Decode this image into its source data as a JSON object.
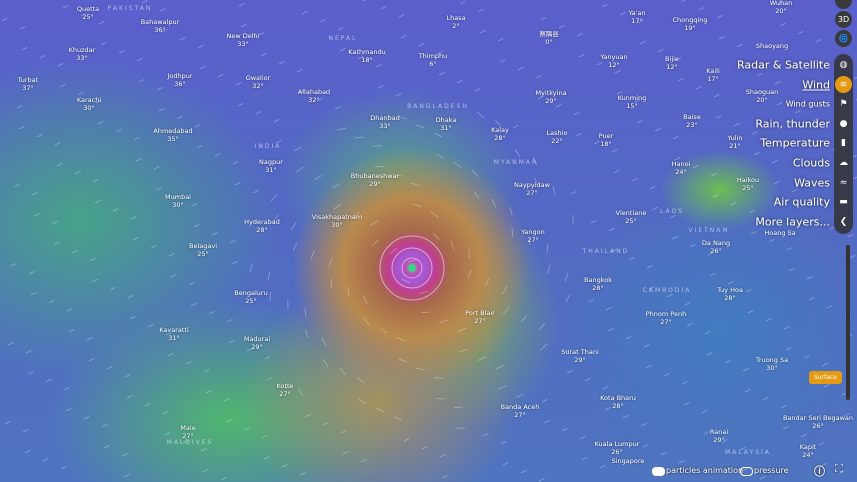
{
  "map": {
    "colors": {
      "active_layer": "#e59a11",
      "menu_bg": "#333333"
    },
    "countries": [
      "PAKISTAN",
      "INDIA",
      "NEPAL",
      "BANGLADESH",
      "MYANMAR",
      "LAOS",
      "VIETNAM",
      "THAILAND",
      "CAMBODIA",
      "MALDIVES",
      "MALAYSIA"
    ],
    "cities": [
      {
        "name": "Quetta",
        "temp": "25°"
      },
      {
        "name": "Bahawalpur",
        "temp": "36°"
      },
      {
        "name": "New Delhi",
        "temp": "33°"
      },
      {
        "name": "Khuzdar",
        "temp": "33°"
      },
      {
        "name": "Turbat",
        "temp": "37°"
      },
      {
        "name": "Jodhpur",
        "temp": "36°"
      },
      {
        "name": "Gwalior",
        "temp": "32°"
      },
      {
        "name": "Karachi",
        "temp": "30°"
      },
      {
        "name": "Ahmedabad",
        "temp": "35°"
      },
      {
        "name": "Kathmandu",
        "temp": "18°"
      },
      {
        "name": "Thimphu",
        "temp": "6°"
      },
      {
        "name": "Lhasa",
        "temp": "2°"
      },
      {
        "name": "察隅县",
        "temp": "0°"
      },
      {
        "name": "Allahabad",
        "temp": "32°"
      },
      {
        "name": "Dhanbad",
        "temp": "33°"
      },
      {
        "name": "Dhaka",
        "temp": "31°"
      },
      {
        "name": "Kalay",
        "temp": "28°"
      },
      {
        "name": "Lashio",
        "temp": "22°"
      },
      {
        "name": "Myitkyina",
        "temp": "29°"
      },
      {
        "name": "Ya'an",
        "temp": "17°"
      },
      {
        "name": "Chongqing",
        "temp": "19°"
      },
      {
        "name": "Yanyuan",
        "temp": "12°"
      },
      {
        "name": "Bijie",
        "temp": "12°"
      },
      {
        "name": "Kaili",
        "temp": "17°"
      },
      {
        "name": "Kunming",
        "temp": "15°"
      },
      {
        "name": "Baise",
        "temp": "23°"
      },
      {
        "name": "Puer",
        "temp": "18°"
      },
      {
        "name": "Yulin",
        "temp": "21°"
      },
      {
        "name": "Hanoi",
        "temp": "24°"
      },
      {
        "name": "Haikou",
        "temp": "25°"
      },
      {
        "name": "Wuhan",
        "temp": "20°"
      },
      {
        "name": "Nagpur",
        "temp": "31°"
      },
      {
        "name": "Bhubaneshwar",
        "temp": "29°"
      },
      {
        "name": "Naypyidaw",
        "temp": "27°"
      },
      {
        "name": "Mumbai",
        "temp": "30°"
      },
      {
        "name": "Hyderabad",
        "temp": "28°"
      },
      {
        "name": "Visakhapatnam",
        "temp": "30°"
      },
      {
        "name": "Yangon",
        "temp": "27°"
      },
      {
        "name": "Vientiane",
        "temp": "25°"
      },
      {
        "name": "Da Nang",
        "temp": "26°"
      },
      {
        "name": "Belagavi",
        "temp": "25°"
      },
      {
        "name": "Bengaluru",
        "temp": "25°"
      },
      {
        "name": "Bangkok",
        "temp": "28°"
      },
      {
        "name": "Tuy Hoa",
        "temp": "28°"
      },
      {
        "name": "Port Blair",
        "temp": "27°"
      },
      {
        "name": "Phnom Penh",
        "temp": "27°"
      },
      {
        "name": "Kavaratti",
        "temp": "31°"
      },
      {
        "name": "Madurai",
        "temp": "29°"
      },
      {
        "name": "Surat Thani",
        "temp": "29°"
      },
      {
        "name": "Truong Sa",
        "temp": "30°"
      },
      {
        "name": "Kotte",
        "temp": "27°"
      },
      {
        "name": "Kota Bharu",
        "temp": "28°"
      },
      {
        "name": "Banda Aceh",
        "temp": "27°"
      },
      {
        "name": "Bandar Seri Begawan",
        "temp": "26°"
      },
      {
        "name": "Male",
        "temp": "27°"
      },
      {
        "name": "Kuala Lumpur",
        "temp": "26°"
      },
      {
        "name": "Ranai",
        "temp": "29°"
      },
      {
        "name": "Kapit",
        "temp": "24°"
      },
      {
        "name": "Singapore",
        "temp": ""
      },
      {
        "name": "Hoang Sa",
        "temp": ""
      },
      {
        "name": "Shaoguan",
        "temp": "20°"
      },
      {
        "name": "Shaoyang",
        "temp": ""
      }
    ]
  },
  "top_buttons": {
    "three_d": "3D"
  },
  "layers": [
    {
      "label": "Radar & Satellite",
      "icon": "globe-icon"
    },
    {
      "label": "Wind",
      "icon": "wind-icon",
      "active": true
    },
    {
      "label": "Wind gusts",
      "icon": "flag-icon"
    },
    {
      "label": "Rain, thunder",
      "icon": "drop-icon"
    },
    {
      "label": "Temperature",
      "icon": "thermometer-icon"
    },
    {
      "label": "Clouds",
      "icon": "cloud-icon"
    },
    {
      "label": "Waves",
      "icon": "waves-icon"
    },
    {
      "label": "Air quality",
      "icon": "car-icon"
    },
    {
      "label": "More layers...",
      "icon": "chevron-left-icon"
    }
  ],
  "altitude": {
    "selected": "Surface"
  },
  "bottom": {
    "particles_label": "particles animation",
    "particles_on": true,
    "pressure_label": "pressure",
    "pressure_on": false
  }
}
